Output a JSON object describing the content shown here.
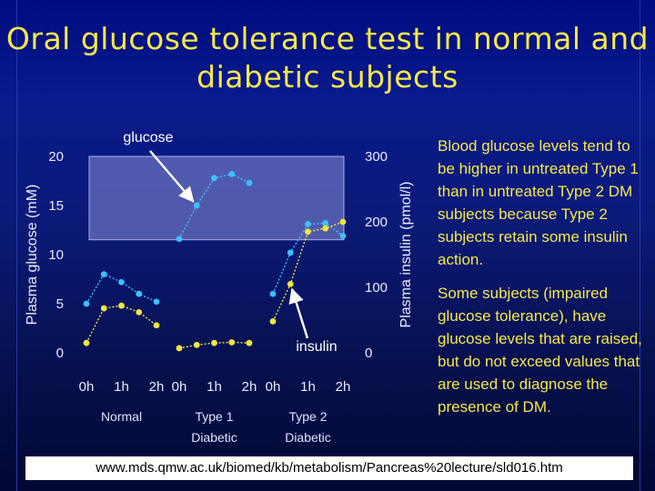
{
  "slide": {
    "title_lines": [
      "Oral glucose tolerance test in normal and",
      "diabetic subjects"
    ],
    "notes": [
      "Blood glucose levels tend to be higher in untreated Type 1 than in untreated Type 2 DM subjects because Type 2 subjects retain some insulin action.",
      "Some subjects (impaired glucose tolerance), have glucose levels that are raised, but do not exceed values that are used to diagnose the presence of DM."
    ],
    "footer_url": "www.mds.qmw.ac.uk/biomed/kb/metabolism/Pancreas%20lecture/sld016.htm",
    "colors": {
      "glucose": "#3cc0ff",
      "insulin": "#f0e63c",
      "band": "#8b8fd6",
      "title": "#f6e84a",
      "note_text": "#f6e84a"
    }
  },
  "chart_data": {
    "type": "line",
    "xlabel": "",
    "ylabel": "Plasma glucose (mM)",
    "y2label": "Plasma insulin (pmol/l)",
    "ylim": [
      0,
      20
    ],
    "y2lim": [
      0,
      300
    ],
    "yticks": [
      "0",
      "5",
      "10",
      "15",
      "20"
    ],
    "y2ticks": [
      "0",
      "100",
      "200",
      "300"
    ],
    "highlight_band": {
      "y_from": 11.5,
      "y_to": 20
    },
    "groups": [
      {
        "name_lines": [
          "Normal"
        ],
        "x_ticks": [
          "0h",
          "1h",
          "2h"
        ],
        "glucose": {
          "x": [
            0,
            0.5,
            1,
            1.5,
            2
          ],
          "y": [
            5.0,
            8.0,
            7.2,
            6.0,
            5.2
          ]
        },
        "insulin": {
          "x": [
            0,
            0.5,
            1,
            1.5,
            2
          ],
          "y": [
            15,
            68,
            72,
            62,
            42
          ]
        }
      },
      {
        "name_lines": [
          "Type 1",
          "Diabetic"
        ],
        "x_ticks": [
          "0h",
          "1h",
          "2h"
        ],
        "glucose": {
          "x": [
            0,
            0.5,
            1,
            1.5,
            2
          ],
          "y": [
            11.6,
            15.0,
            17.8,
            18.2,
            17.3
          ]
        },
        "insulin": {
          "x": [
            0,
            0.5,
            1,
            1.5,
            2
          ],
          "y": [
            7,
            12,
            15,
            16,
            15
          ]
        }
      },
      {
        "name_lines": [
          "Type 2",
          "Diabetic"
        ],
        "x_ticks": [
          "0h",
          "1h",
          "2h"
        ],
        "glucose": {
          "x": [
            0,
            0.5,
            1,
            1.5,
            2
          ],
          "y": [
            6.0,
            10.2,
            13.1,
            13.2,
            11.9
          ]
        },
        "insulin": {
          "x": [
            0,
            0.5,
            1,
            1.5,
            2
          ],
          "y": [
            48,
            105,
            185,
            190,
            200
          ]
        }
      }
    ],
    "annotations": [
      {
        "text": "glucose",
        "target": "glucose",
        "group": 1,
        "point": 1
      },
      {
        "text": "insulin",
        "target": "insulin",
        "group": 2,
        "point": 1
      }
    ]
  }
}
